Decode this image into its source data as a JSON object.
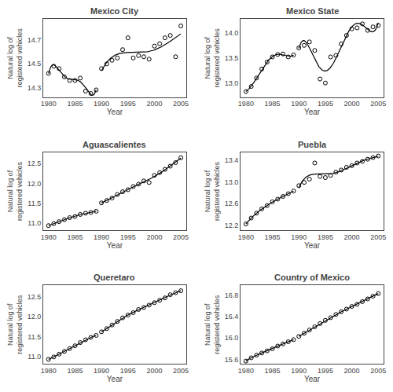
{
  "chart_data": [
    {
      "type": "scatter",
      "title": "Mexico City",
      "y_label": "Natural log of registered vehicles",
      "x_label": "Year",
      "x": [
        1980,
        1981,
        1982,
        1983,
        1984,
        1985,
        1986,
        1987,
        1988,
        1989,
        1990,
        1991,
        1992,
        1993,
        1994,
        1995,
        1996,
        1997,
        1998,
        1999,
        2000,
        2001,
        2002,
        2003,
        2004,
        2005
      ],
      "values": [
        14.42,
        14.48,
        14.46,
        14.39,
        14.36,
        14.36,
        14.38,
        14.27,
        14.25,
        14.28,
        14.46,
        14.5,
        14.53,
        14.55,
        14.62,
        14.72,
        14.55,
        14.57,
        14.56,
        14.54,
        14.65,
        14.67,
        14.72,
        14.74,
        14.56,
        14.82
      ],
      "xlim": [
        1979,
        2006
      ],
      "xticks": [
        1980,
        1985,
        1990,
        1995,
        2000,
        2005
      ],
      "ylim": [
        14.22,
        14.88
      ],
      "yticks": [
        14.3,
        14.5,
        14.7
      ],
      "fit_degree": 5,
      "break_x": 1990,
      "marker": "circle-open",
      "color": "black",
      "grid": false
    },
    {
      "type": "scatter",
      "title": "Mexico State",
      "y_label": "Natural log of registered vehicles",
      "x_label": "Year",
      "x": [
        1980,
        1981,
        1982,
        1983,
        1984,
        1985,
        1986,
        1987,
        1988,
        1989,
        1990,
        1991,
        1992,
        1993,
        1994,
        1995,
        1996,
        1997,
        1998,
        1999,
        2000,
        2001,
        2002,
        2003,
        2004,
        2005
      ],
      "values": [
        12.83,
        12.93,
        13.1,
        13.28,
        13.42,
        13.52,
        13.57,
        13.58,
        13.52,
        13.56,
        13.7,
        13.75,
        13.82,
        13.65,
        13.08,
        13.0,
        13.52,
        13.55,
        13.78,
        13.95,
        14.08,
        14.1,
        14.18,
        14.05,
        14.12,
        14.15
      ],
      "xlim": [
        1979,
        2006
      ],
      "xticks": [
        1980,
        1985,
        1990,
        1995,
        2000,
        2005
      ],
      "ylim": [
        12.72,
        14.28
      ],
      "yticks": [
        {
          "value": 13.0,
          "label": "13.0"
        },
        13.5,
        {
          "value": 14.0,
          "label": "14.0"
        }
      ],
      "fit_degree": 5,
      "break_x": 1990,
      "marker": "circle-open",
      "color": "black",
      "grid": false
    },
    {
      "type": "scatter",
      "title": "Aguascalientes",
      "y_label": "Natural log of registered vehicles",
      "x_label": "Year",
      "x": [
        1980,
        1981,
        1982,
        1983,
        1984,
        1985,
        1986,
        1987,
        1988,
        1989,
        1990,
        1991,
        1992,
        1993,
        1994,
        1995,
        1996,
        1997,
        1998,
        1999,
        2000,
        2001,
        2002,
        2003,
        2004,
        2005
      ],
      "values": [
        10.94,
        10.99,
        11.04,
        11.09,
        11.14,
        11.17,
        11.22,
        11.25,
        11.27,
        11.3,
        11.51,
        11.57,
        11.63,
        11.72,
        11.79,
        11.84,
        11.92,
        11.98,
        12.06,
        12.02,
        12.2,
        12.27,
        12.35,
        12.43,
        12.52,
        12.64
      ],
      "xlim": [
        1979,
        2006
      ],
      "xticks": [
        1980,
        1985,
        1990,
        1995,
        2000,
        2005
      ],
      "ylim": [
        10.82,
        12.78
      ],
      "yticks": [
        {
          "value": 11.0,
          "label": "11.0"
        },
        11.5,
        {
          "value": 12.0,
          "label": "12.0"
        },
        12.5
      ],
      "fit_degree": 5,
      "break_x": 1990,
      "marker": "circle-open",
      "color": "black",
      "grid": false
    },
    {
      "type": "scatter",
      "title": "Puebla",
      "y_label": "Natural log of registered vehicles",
      "x_label": "Year",
      "x": [
        1980,
        1981,
        1982,
        1983,
        1984,
        1985,
        1986,
        1987,
        1988,
        1989,
        1990,
        1991,
        1992,
        1993,
        1994,
        1995,
        1996,
        1997,
        1998,
        1999,
        2000,
        2001,
        2002,
        2003,
        2004,
        2005
      ],
      "values": [
        12.22,
        12.33,
        12.42,
        12.5,
        12.56,
        12.63,
        12.68,
        12.73,
        12.78,
        12.83,
        12.93,
        12.99,
        13.05,
        13.35,
        13.1,
        13.08,
        13.12,
        13.18,
        13.22,
        13.27,
        13.3,
        13.35,
        13.38,
        13.42,
        13.45,
        13.48
      ],
      "xlim": [
        1979,
        2006
      ],
      "xticks": [
        1980,
        1985,
        1990,
        1995,
        2000,
        2005
      ],
      "ylim": [
        12.1,
        13.55
      ],
      "yticks": [
        12.2,
        12.6,
        {
          "value": 13.0,
          "label": "13.0"
        },
        13.4
      ],
      "fit_degree": 5,
      "break_x": 1990,
      "marker": "circle-open",
      "color": "black",
      "grid": false
    },
    {
      "type": "scatter",
      "title": "Queretaro",
      "y_label": "Natural log of registered vehicles",
      "x_label": "Year",
      "x": [
        1980,
        1981,
        1982,
        1983,
        1984,
        1985,
        1986,
        1987,
        1988,
        1989,
        1990,
        1991,
        1992,
        1993,
        1994,
        1995,
        1996,
        1997,
        1998,
        1999,
        2000,
        2001,
        2002,
        2003,
        2004,
        2005
      ],
      "values": [
        10.93,
        10.99,
        11.06,
        11.13,
        11.2,
        11.27,
        11.35,
        11.42,
        11.48,
        11.53,
        11.62,
        11.7,
        11.79,
        11.88,
        11.97,
        12.04,
        12.1,
        12.18,
        12.23,
        12.29,
        12.35,
        12.41,
        12.47,
        12.55,
        12.6,
        12.65
      ],
      "xlim": [
        1979,
        2006
      ],
      "xticks": [
        1980,
        1985,
        1990,
        1995,
        2000,
        2005
      ],
      "ylim": [
        10.82,
        12.78
      ],
      "yticks": [
        {
          "value": 11.0,
          "label": "11.0"
        },
        11.5,
        {
          "value": 12.0,
          "label": "12.0"
        },
        12.5
      ],
      "fit_degree": 5,
      "break_x": 1990,
      "marker": "circle-open",
      "color": "black",
      "grid": false
    },
    {
      "type": "scatter",
      "title": "Country of Mexico",
      "y_label": "Natural log of registered vehicles",
      "x_label": "Year",
      "x": [
        1980,
        1981,
        1982,
        1983,
        1984,
        1985,
        1986,
        1987,
        1988,
        1989,
        1990,
        1991,
        1992,
        1993,
        1994,
        1995,
        1996,
        1997,
        1998,
        1999,
        2000,
        2001,
        2002,
        2003,
        2004,
        2005
      ],
      "values": [
        15.57,
        15.63,
        15.68,
        15.72,
        15.76,
        15.8,
        15.85,
        15.89,
        15.93,
        15.97,
        16.03,
        16.09,
        16.15,
        16.21,
        16.27,
        16.33,
        16.38,
        16.44,
        16.49,
        16.54,
        16.59,
        16.63,
        16.68,
        16.73,
        16.78,
        16.83
      ],
      "xlim": [
        1979,
        2006
      ],
      "xticks": [
        1980,
        1985,
        1990,
        1995,
        2000,
        2005
      ],
      "ylim": [
        15.52,
        16.98
      ],
      "yticks": [
        15.6,
        {
          "value": 16.0,
          "label": "16.0"
        },
        16.4,
        16.8
      ],
      "fit_degree": 5,
      "break_x": 1990,
      "marker": "circle-open",
      "color": "black",
      "grid": false
    }
  ]
}
